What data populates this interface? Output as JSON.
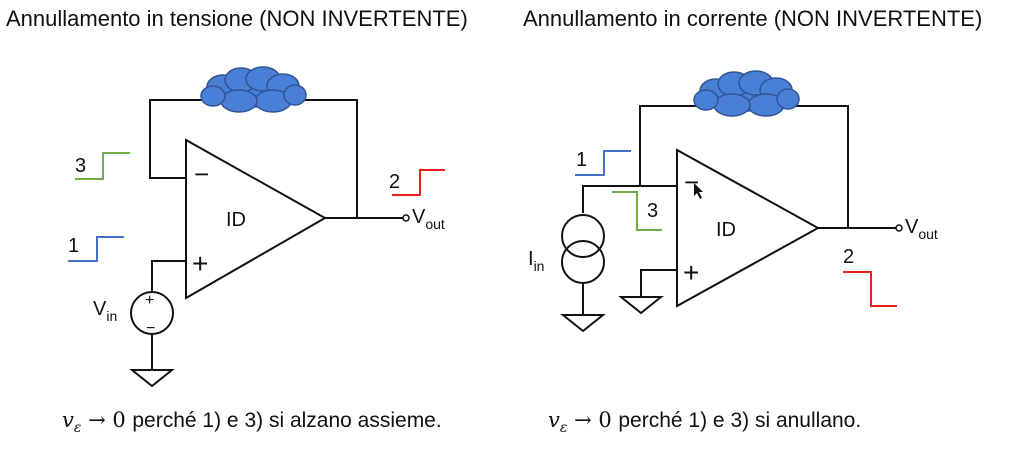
{
  "left": {
    "title": "Annullamento in tensione (NON INVERTENTE)",
    "opamp_label": "ID",
    "minus_sign": "−",
    "plus_sign": "+",
    "out_label_main": "V",
    "out_label_sub": "out",
    "source_label_main": "V",
    "source_label_sub": "in",
    "source_plus": "+",
    "source_minus": "−",
    "step1": "1",
    "step2": "2",
    "step3": "3",
    "caption_math": "v",
    "caption_sub": "ε",
    "caption_rest": " → 0 ",
    "caption_text": "perché 1) e 3) si alzano assieme."
  },
  "right": {
    "title": "Annullamento in corrente (NON INVERTENTE)",
    "opamp_label": "ID",
    "minus_sign": "−",
    "plus_sign": "+",
    "out_label_main": "V",
    "out_label_sub": "out",
    "source_label_main": "I",
    "source_label_sub": "in",
    "step1": "1",
    "step2": "2",
    "step3": "3",
    "caption_math": "v",
    "caption_sub": "ε",
    "caption_rest": " → 0 ",
    "caption_text": "perché 1) e 3) si anullano."
  },
  "colors": {
    "step1": "#4472C4",
    "step2": "#E8201A",
    "step3": "#70AD47",
    "cloud_fill": "#4A7FD6",
    "cloud_stroke": "#2F5597",
    "wire": "#111111"
  }
}
